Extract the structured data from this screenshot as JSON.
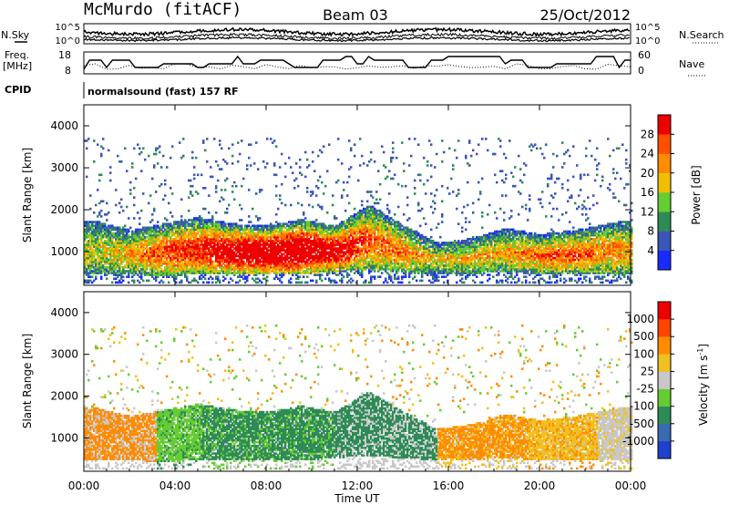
{
  "header": {
    "station": "McMurdo (fitACF)",
    "beam": "Beam 03",
    "date": "25/Oct/2012"
  },
  "top_panels": {
    "left_labels": {
      "nsky": "N.Sky",
      "freq": "Freq.",
      "freq_unit": "[MHz]",
      "cpid": "CPID"
    },
    "right_labels": {
      "nsearch": "N.Search",
      "nave": "Nave"
    },
    "noise_ticks_left": [
      "10^5",
      "10^0"
    ],
    "noise_ticks_right": [
      "10^5",
      "10^0"
    ],
    "freq_ticks": [
      "18",
      "8"
    ],
    "nave_ticks": [
      "60",
      "0"
    ],
    "cpid_text": "normalsound (fast) 157 RF"
  },
  "chart_data": [
    {
      "type": "heatmap",
      "panel": "power",
      "ylabel": "Slant Range [km]",
      "ylim": [
        200,
        4500
      ],
      "yticks": [
        "1000",
        "2000",
        "3000",
        "4000"
      ],
      "x_range_hours": [
        0,
        24
      ],
      "colorbar_label": "Power [dB]",
      "colorbar_ticks": [
        "4",
        "8",
        "12",
        "16",
        "20",
        "24",
        "28"
      ],
      "colorbar_colors": [
        "#1a2bff",
        "#3b55b8",
        "#2e8b57",
        "#66cc33",
        "#f0c000",
        "#ff8c00",
        "#ff5000",
        "#ee0000"
      ],
      "echo_band": [
        {
          "t": 0.5,
          "low": 450,
          "high": 1700,
          "core": 0.3
        },
        {
          "t": 2.0,
          "low": 450,
          "high": 1500,
          "core": 0.4
        },
        {
          "t": 3.5,
          "low": 400,
          "high": 1650,
          "core": 0.6
        },
        {
          "t": 5.0,
          "low": 450,
          "high": 1800,
          "core": 0.7
        },
        {
          "t": 6.5,
          "low": 450,
          "high": 1650,
          "core": 0.85
        },
        {
          "t": 8.0,
          "low": 450,
          "high": 1600,
          "core": 1.0
        },
        {
          "t": 9.5,
          "low": 450,
          "high": 1750,
          "core": 1.0
        },
        {
          "t": 11.0,
          "low": 500,
          "high": 1600,
          "core": 0.8
        },
        {
          "t": 12.5,
          "low": 550,
          "high": 2100,
          "core": 0.6
        },
        {
          "t": 14.0,
          "low": 500,
          "high": 1600,
          "core": 0.5
        },
        {
          "t": 15.5,
          "low": 450,
          "high": 1200,
          "core": 0.3
        },
        {
          "t": 17.0,
          "low": 450,
          "high": 1300,
          "core": 0.35
        },
        {
          "t": 18.5,
          "low": 500,
          "high": 1550,
          "core": 0.4
        },
        {
          "t": 20.0,
          "low": 450,
          "high": 1400,
          "core": 0.5
        },
        {
          "t": 21.5,
          "low": 450,
          "high": 1500,
          "core": 0.55
        },
        {
          "t": 23.5,
          "low": 450,
          "high": 1700,
          "core": 0.45
        }
      ]
    },
    {
      "type": "heatmap",
      "panel": "velocity",
      "ylabel": "Slant Range [km]",
      "ylim": [
        200,
        4500
      ],
      "yticks": [
        "1000",
        "2000",
        "3000",
        "4000"
      ],
      "xlabel": "Time UT",
      "xticks": [
        "00:00",
        "04:00",
        "08:00",
        "12:00",
        "16:00",
        "20:00",
        "00:00"
      ],
      "x_range_hours": [
        0,
        24
      ],
      "colorbar_label": "Velocity [m s",
      "colorbar_unit_sup": "-1",
      "colorbar_ticks": [
        "1000",
        "500",
        "100",
        "25",
        "-25",
        "-100",
        "-500",
        "-1000"
      ],
      "colorbar_colors": [
        "#2040d0",
        "#3a6ab0",
        "#2e8b57",
        "#66cc33",
        "#c8c8c8",
        "#f0c020",
        "#ff8c00",
        "#ff4500",
        "#ee0000"
      ],
      "velocity_segments": [
        {
          "t0": 0.0,
          "t1": 3.2,
          "main": "#ff8c00",
          "alt": "#c8c8c8"
        },
        {
          "t0": 3.2,
          "t1": 5.2,
          "main": "#66cc33",
          "alt": "#2e8b57"
        },
        {
          "t0": 5.2,
          "t1": 11.0,
          "main": "#2e8b57",
          "alt": "#66cc33"
        },
        {
          "t0": 11.0,
          "t1": 15.5,
          "main": "#2e8b57",
          "alt": "#c8c8c8"
        },
        {
          "t0": 15.5,
          "t1": 19.5,
          "main": "#ff8c00",
          "alt": "#f0c020"
        },
        {
          "t0": 19.5,
          "t1": 22.5,
          "main": "#f0c020",
          "alt": "#ff8c00"
        },
        {
          "t0": 22.5,
          "t1": 24.0,
          "main": "#c8c8c8",
          "alt": "#f0c020"
        }
      ]
    }
  ]
}
